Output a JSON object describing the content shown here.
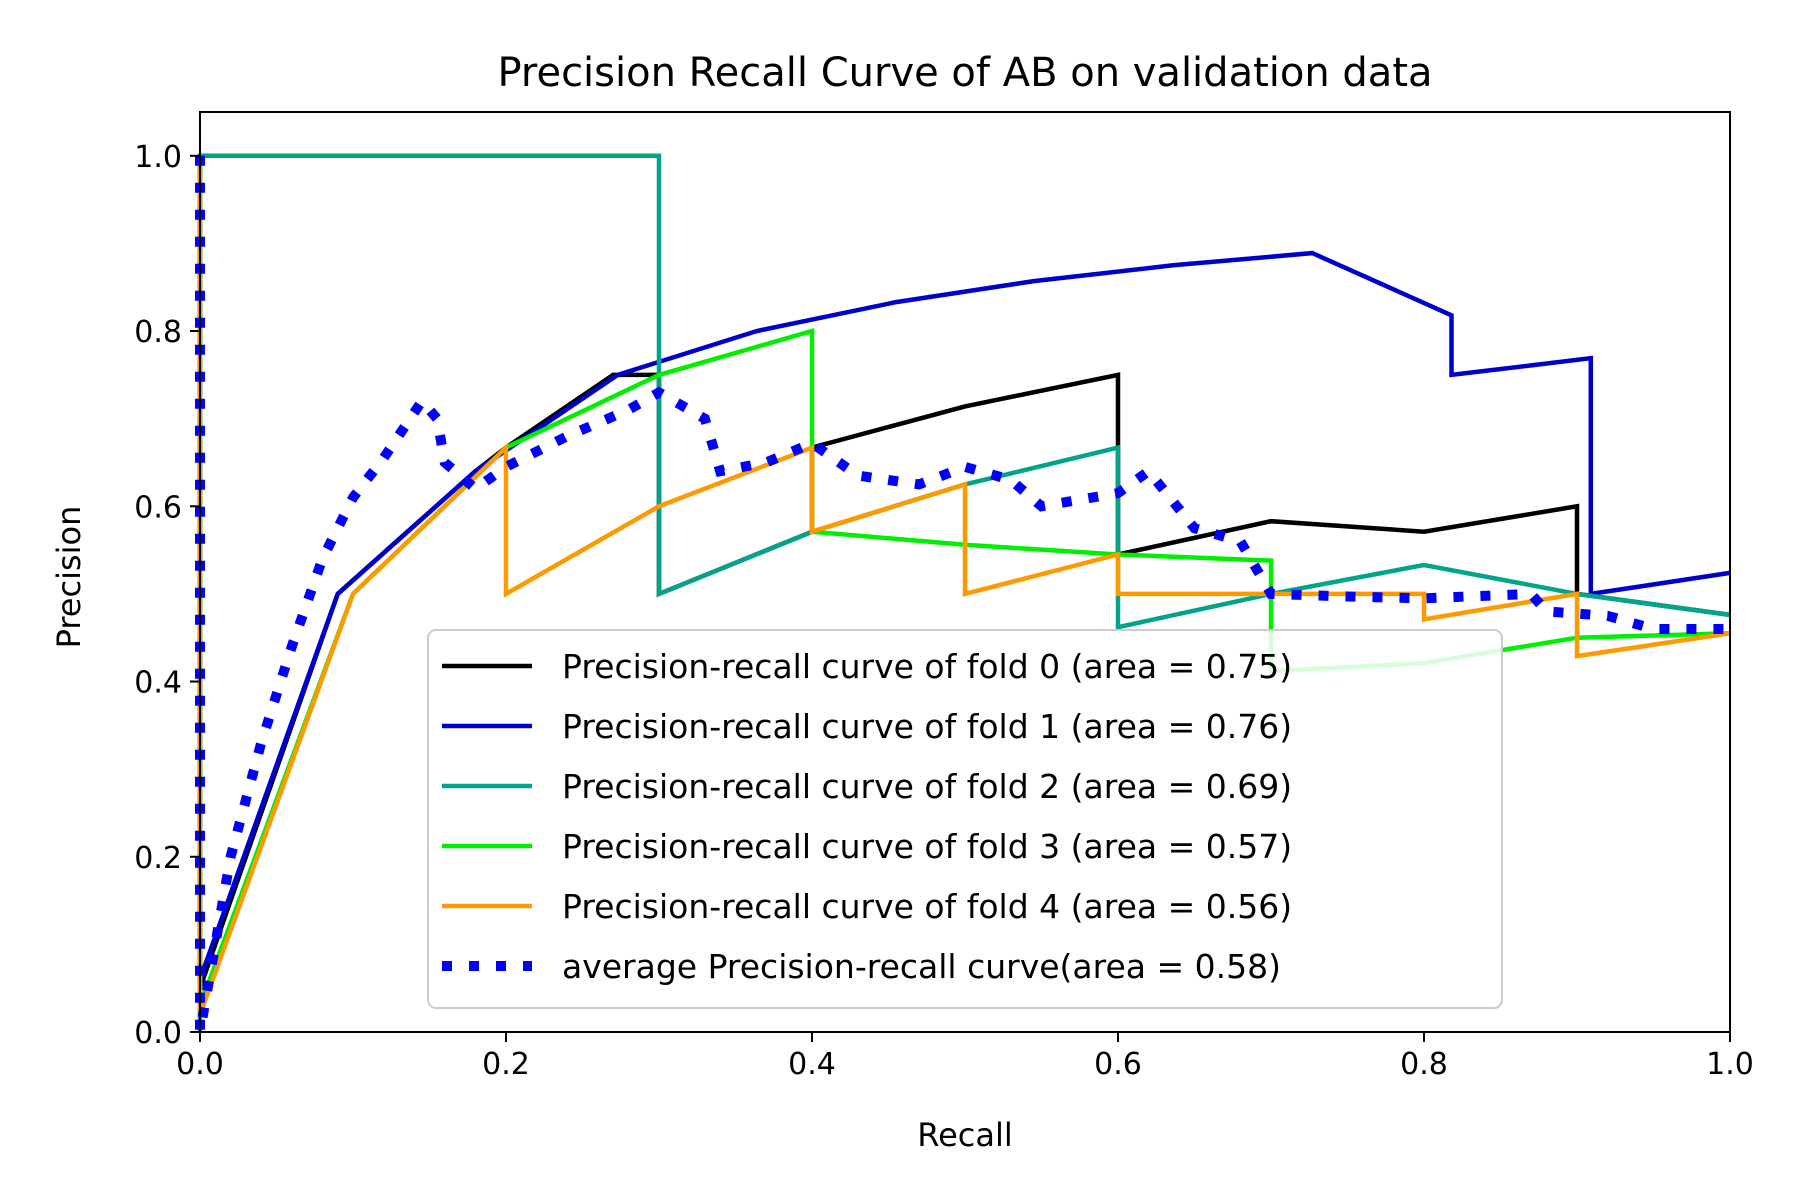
{
  "chart_data": {
    "type": "line",
    "title": "Precision Recall Curve of AB on validation data",
    "xlabel": "Recall",
    "ylabel": "Precision",
    "xlim": [
      0.0,
      1.0
    ],
    "ylim": [
      0.0,
      1.05
    ],
    "xticks": [
      0.0,
      0.2,
      0.4,
      0.6,
      0.8,
      1.0
    ],
    "yticks": [
      0.0,
      0.2,
      0.4,
      0.6,
      0.8,
      1.0
    ],
    "xtick_labels": [
      "0.0",
      "0.2",
      "0.4",
      "0.6",
      "0.8",
      "1.0"
    ],
    "ytick_labels": [
      "0.0",
      "0.2",
      "0.4",
      "0.6",
      "0.8",
      "1.0"
    ],
    "grid": false,
    "legend_position": "lower-right",
    "series": [
      {
        "name": "Precision-recall curve of fold 0 (area = 0.75)",
        "color": "#000000",
        "style": "solid",
        "points": [
          [
            0.0,
            1.0
          ],
          [
            0.0,
            0.05
          ],
          [
            0.09,
            0.5
          ],
          [
            0.18,
            0.64
          ],
          [
            0.2,
            0.667
          ],
          [
            0.27,
            0.75
          ],
          [
            0.3,
            0.75
          ],
          [
            0.3,
            0.5
          ],
          [
            0.4,
            0.571
          ],
          [
            0.4,
            0.667
          ],
          [
            0.5,
            0.714
          ],
          [
            0.6,
            0.75
          ],
          [
            0.6,
            0.545
          ],
          [
            0.7,
            0.583
          ],
          [
            0.8,
            0.571
          ],
          [
            0.9,
            0.6
          ],
          [
            0.9,
            0.5
          ],
          [
            1.0,
            0.476
          ]
        ]
      },
      {
        "name": "Precision-recall curve of fold 1 (area = 0.76)",
        "color": "#0000cc",
        "style": "solid",
        "points": [
          [
            0.0,
            1.0
          ],
          [
            0.0,
            0.06
          ],
          [
            0.09,
            0.5
          ],
          [
            0.18,
            0.64
          ],
          [
            0.273,
            0.75
          ],
          [
            0.364,
            0.8
          ],
          [
            0.455,
            0.833
          ],
          [
            0.545,
            0.857
          ],
          [
            0.636,
            0.875
          ],
          [
            0.727,
            0.889
          ],
          [
            0.818,
            0.818
          ],
          [
            0.818,
            0.75
          ],
          [
            0.909,
            0.769
          ],
          [
            0.909,
            0.5
          ],
          [
            1.0,
            0.524
          ]
        ]
      },
      {
        "name": "Precision-recall curve of fold 2 (area = 0.69)",
        "color": "#00a589",
        "style": "solid",
        "points": [
          [
            0.0,
            0.0
          ],
          [
            0.0,
            1.0
          ],
          [
            0.3,
            1.0
          ],
          [
            0.3,
            0.5
          ],
          [
            0.4,
            0.571
          ],
          [
            0.5,
            0.625
          ],
          [
            0.6,
            0.667
          ],
          [
            0.6,
            0.462
          ],
          [
            0.7,
            0.5
          ],
          [
            0.8,
            0.533
          ],
          [
            0.9,
            0.5
          ],
          [
            1.0,
            0.476
          ]
        ]
      },
      {
        "name": "Precision-recall curve of fold 3 (area = 0.57)",
        "color": "#00ee00",
        "style": "solid",
        "points": [
          [
            0.0,
            1.0
          ],
          [
            0.0,
            0.03
          ],
          [
            0.1,
            0.5
          ],
          [
            0.2,
            0.667
          ],
          [
            0.3,
            0.75
          ],
          [
            0.4,
            0.8
          ],
          [
            0.4,
            0.571
          ],
          [
            0.5,
            0.556
          ],
          [
            0.6,
            0.545
          ],
          [
            0.7,
            0.538
          ],
          [
            0.7,
            0.412
          ],
          [
            0.8,
            0.421
          ],
          [
            0.9,
            0.45
          ],
          [
            1.0,
            0.455
          ]
        ]
      },
      {
        "name": "Precision-recall curve of fold 4 (area = 0.56)",
        "color": "#ff9900",
        "style": "solid",
        "points": [
          [
            0.0,
            1.0
          ],
          [
            0.0,
            0.02
          ],
          [
            0.1,
            0.5
          ],
          [
            0.2,
            0.667
          ],
          [
            0.2,
            0.5
          ],
          [
            0.3,
            0.6
          ],
          [
            0.4,
            0.667
          ],
          [
            0.4,
            0.571
          ],
          [
            0.5,
            0.625
          ],
          [
            0.5,
            0.5
          ],
          [
            0.6,
            0.545
          ],
          [
            0.6,
            0.5
          ],
          [
            0.8,
            0.5
          ],
          [
            0.8,
            0.471
          ],
          [
            0.9,
            0.5
          ],
          [
            0.9,
            0.429
          ],
          [
            1.0,
            0.455
          ]
        ]
      },
      {
        "name": "average Precision-recall curve(area = 0.58)",
        "color": "#0000ff",
        "style": "dotted",
        "points": [
          [
            0.0,
            1.0
          ],
          [
            0.0,
            0.0
          ],
          [
            0.01,
            0.1
          ],
          [
            0.02,
            0.2
          ],
          [
            0.04,
            0.33
          ],
          [
            0.06,
            0.44
          ],
          [
            0.08,
            0.54
          ],
          [
            0.1,
            0.61
          ],
          [
            0.12,
            0.655
          ],
          [
            0.145,
            0.72
          ],
          [
            0.155,
            0.7
          ],
          [
            0.16,
            0.65
          ],
          [
            0.18,
            0.62
          ],
          [
            0.2,
            0.645
          ],
          [
            0.24,
            0.68
          ],
          [
            0.28,
            0.71
          ],
          [
            0.3,
            0.73
          ],
          [
            0.33,
            0.7
          ],
          [
            0.34,
            0.64
          ],
          [
            0.37,
            0.65
          ],
          [
            0.4,
            0.672
          ],
          [
            0.43,
            0.635
          ],
          [
            0.47,
            0.625
          ],
          [
            0.5,
            0.645
          ],
          [
            0.53,
            0.63
          ],
          [
            0.55,
            0.6
          ],
          [
            0.6,
            0.615
          ],
          [
            0.62,
            0.64
          ],
          [
            0.65,
            0.575
          ],
          [
            0.68,
            0.56
          ],
          [
            0.7,
            0.5
          ],
          [
            0.75,
            0.497
          ],
          [
            0.8,
            0.495
          ],
          [
            0.87,
            0.5
          ],
          [
            0.88,
            0.48
          ],
          [
            0.92,
            0.475
          ],
          [
            0.95,
            0.46
          ],
          [
            1.0,
            0.46
          ]
        ]
      }
    ]
  }
}
